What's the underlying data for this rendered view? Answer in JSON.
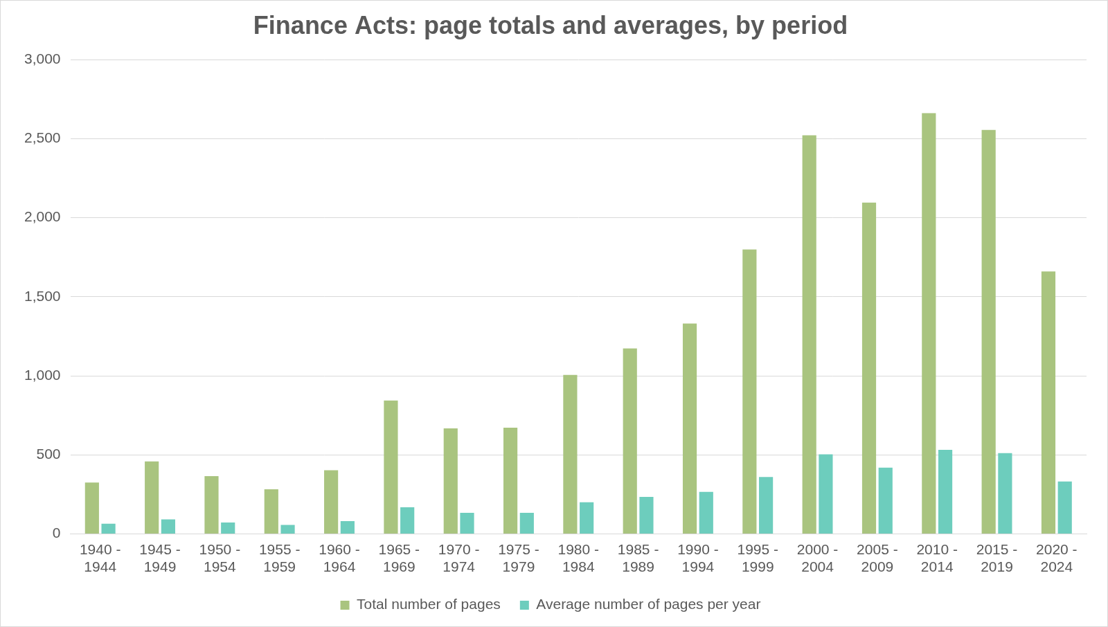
{
  "chart_data": {
    "type": "bar",
    "title": "Finance Acts: page totals and averages, by period",
    "categories": [
      "1940 - 1944",
      "1945 - 1949",
      "1950 - 1954",
      "1955 - 1959",
      "1960 - 1964",
      "1965 - 1969",
      "1970 - 1974",
      "1975 - 1979",
      "1980 - 1984",
      "1985 - 1989",
      "1990 - 1994",
      "1995 - 1999",
      "2000 - 2004",
      "2005 - 2009",
      "2010 - 2014",
      "2015 - 2019",
      "2020 - 2024"
    ],
    "series": [
      {
        "name": "Total number of pages",
        "color": "#a9c47f",
        "values": [
          325,
          459,
          366,
          283,
          403,
          844,
          668,
          672,
          1006,
          1173,
          1331,
          1799,
          2522,
          2096,
          2662,
          2555,
          1660
        ]
      },
      {
        "name": "Average number of pages per year",
        "color": "#6dcdbd",
        "values": [
          65,
          92,
          73,
          57,
          81,
          169,
          134,
          134,
          201,
          235,
          266,
          360,
          504,
          419,
          532,
          511,
          332
        ]
      }
    ],
    "ylim": [
      0,
      3000
    ],
    "yticks": [
      0,
      500,
      {
        "value": 1000,
        "label": "1,000"
      },
      {
        "value": 1500,
        "label": "1,500"
      },
      {
        "value": 2000,
        "label": "2,000"
      },
      {
        "value": 2500,
        "label": "2,500"
      },
      {
        "value": 3000,
        "label": "3,000"
      }
    ],
    "grid": true,
    "legend": "bottom"
  }
}
